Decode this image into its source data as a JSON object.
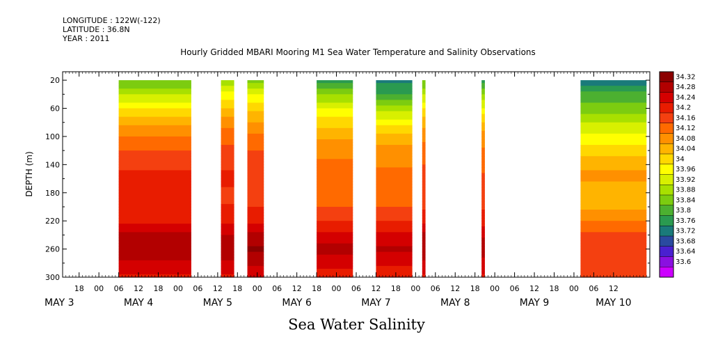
{
  "chart_data": {
    "type": "heatmap",
    "title": "Hourly Gridded MBARI Mooring M1 Sea Water Temperature and Salinity Observations",
    "subtitle": "Sea Water Salinity",
    "header_lines": [
      "LONGITUDE : 122W(-122)",
      "LATITUDE : 36.8N",
      "YEAR : 2011"
    ],
    "ylabel": "DEPTH (m)",
    "ylim": [
      300,
      8
    ],
    "y_ticks": [
      20,
      60,
      100,
      140,
      180,
      220,
      260,
      300
    ],
    "x_axis_start": "2011-05-03 13:00",
    "x_axis_end": "2011-05-10 23:00",
    "x_hour_tick_labels": [
      {
        "time": "2011-05-03 18:00",
        "label": "18"
      },
      {
        "time": "2011-05-04 00:00",
        "label": "00"
      },
      {
        "time": "2011-05-04 06:00",
        "label": "06"
      },
      {
        "time": "2011-05-04 12:00",
        "label": "12"
      },
      {
        "time": "2011-05-04 18:00",
        "label": "18"
      },
      {
        "time": "2011-05-05 00:00",
        "label": "00"
      },
      {
        "time": "2011-05-05 06:00",
        "label": "06"
      },
      {
        "time": "2011-05-05 12:00",
        "label": "12"
      },
      {
        "time": "2011-05-05 18:00",
        "label": "18"
      },
      {
        "time": "2011-05-06 00:00",
        "label": "00"
      },
      {
        "time": "2011-05-06 06:00",
        "label": "06"
      },
      {
        "time": "2011-05-06 12:00",
        "label": "12"
      },
      {
        "time": "2011-05-06 18:00",
        "label": "18"
      },
      {
        "time": "2011-05-07 00:00",
        "label": "00"
      },
      {
        "time": "2011-05-07 06:00",
        "label": "06"
      },
      {
        "time": "2011-05-07 12:00",
        "label": "12"
      },
      {
        "time": "2011-05-07 18:00",
        "label": "18"
      },
      {
        "time": "2011-05-08 00:00",
        "label": "00"
      },
      {
        "time": "2011-05-08 06:00",
        "label": "06"
      },
      {
        "time": "2011-05-08 12:00",
        "label": "12"
      },
      {
        "time": "2011-05-08 18:00",
        "label": "18"
      },
      {
        "time": "2011-05-09 00:00",
        "label": "00"
      },
      {
        "time": "2011-05-09 06:00",
        "label": "06"
      },
      {
        "time": "2011-05-09 12:00",
        "label": "12"
      },
      {
        "time": "2011-05-09 18:00",
        "label": "18"
      },
      {
        "time": "2011-05-10 00:00",
        "label": "00"
      },
      {
        "time": "2011-05-10 06:00",
        "label": "06"
      },
      {
        "time": "2011-05-10 12:00",
        "label": "12"
      }
    ],
    "x_day_labels": [
      {
        "time": "2011-05-03 12:00",
        "label": "MAY  3"
      },
      {
        "time": "2011-05-04 12:00",
        "label": "MAY  4"
      },
      {
        "time": "2011-05-05 12:00",
        "label": "MAY  5"
      },
      {
        "time": "2011-05-06 12:00",
        "label": "MAY  6"
      },
      {
        "time": "2011-05-07 12:00",
        "label": "MAY  7"
      },
      {
        "time": "2011-05-08 12:00",
        "label": "MAY  8"
      },
      {
        "time": "2011-05-09 12:00",
        "label": "MAY  9"
      },
      {
        "time": "2011-05-10 12:00",
        "label": "MAY 10"
      }
    ],
    "colorbar": {
      "labels": [
        "34.32",
        "34.28",
        "34.24",
        "34.2",
        "34.16",
        "34.12",
        "34.08",
        "34.04",
        "34",
        "33.96",
        "33.92",
        "33.88",
        "33.84",
        "33.8",
        "33.76",
        "33.72",
        "33.68",
        "33.64",
        "33.6"
      ],
      "colors": [
        "#8b0000",
        "#b20000",
        "#d40000",
        "#e81c00",
        "#f44010",
        "#ff6a00",
        "#ff9000",
        "#ffb400",
        "#ffd800",
        "#ffff00",
        "#d8f000",
        "#a8e000",
        "#7ccc10",
        "#4cb030",
        "#2a9a50",
        "#1a7a7a",
        "#2a4aa0",
        "#4a20d0",
        "#8a10e0",
        "#cc00ff"
      ]
    },
    "segments": [
      {
        "start": "2011-05-04 06:00",
        "end": "2011-05-05 04:00",
        "profile": [
          [
            20,
            33.82
          ],
          [
            40,
            33.9
          ],
          [
            60,
            33.98
          ],
          [
            80,
            34.05
          ],
          [
            100,
            34.09
          ],
          [
            120,
            34.13
          ],
          [
            140,
            34.16
          ],
          [
            160,
            34.18
          ],
          [
            180,
            34.17
          ],
          [
            200,
            34.18
          ],
          [
            220,
            34.2
          ],
          [
            240,
            34.25
          ],
          [
            260,
            34.28
          ],
          [
            280,
            34.24
          ],
          [
            300,
            34.2
          ]
        ]
      },
      {
        "start": "2011-05-05 13:00",
        "end": "2011-05-05 17:00",
        "profile": [
          [
            20,
            33.86
          ],
          [
            40,
            33.96
          ],
          [
            60,
            34.02
          ],
          [
            80,
            34.08
          ],
          [
            100,
            34.12
          ],
          [
            120,
            34.14
          ],
          [
            140,
            34.16
          ],
          [
            160,
            34.18
          ],
          [
            180,
            34.16
          ],
          [
            200,
            34.17
          ],
          [
            220,
            34.19
          ],
          [
            240,
            34.25
          ],
          [
            260,
            34.28
          ],
          [
            280,
            34.24
          ],
          [
            300,
            34.2
          ]
        ]
      },
      {
        "start": "2011-05-05 21:00",
        "end": "2011-05-06 02:00",
        "profile": [
          [
            20,
            33.84
          ],
          [
            40,
            33.94
          ],
          [
            60,
            34.0
          ],
          [
            80,
            34.06
          ],
          [
            100,
            34.1
          ],
          [
            120,
            34.13
          ],
          [
            140,
            34.15
          ],
          [
            160,
            34.16
          ],
          [
            180,
            34.15
          ],
          [
            200,
            34.17
          ],
          [
            220,
            34.2
          ],
          [
            240,
            34.26
          ],
          [
            260,
            34.29
          ],
          [
            280,
            34.25
          ],
          [
            300,
            34.21
          ]
        ]
      },
      {
        "start": "2011-05-06 18:00",
        "end": "2011-05-07 05:00",
        "profile": [
          [
            20,
            33.77
          ],
          [
            40,
            33.86
          ],
          [
            60,
            33.94
          ],
          [
            80,
            34.0
          ],
          [
            100,
            34.05
          ],
          [
            120,
            34.08
          ],
          [
            140,
            34.1
          ],
          [
            160,
            34.12
          ],
          [
            180,
            34.11
          ],
          [
            200,
            34.13
          ],
          [
            220,
            34.17
          ],
          [
            240,
            34.22
          ],
          [
            260,
            34.26
          ],
          [
            280,
            34.22
          ],
          [
            300,
            34.19
          ]
        ]
      },
      {
        "start": "2011-05-07 12:00",
        "end": "2011-05-07 23:00",
        "profile": [
          [
            20,
            33.74
          ],
          [
            40,
            33.79
          ],
          [
            60,
            33.88
          ],
          [
            80,
            33.96
          ],
          [
            100,
            34.03
          ],
          [
            120,
            34.07
          ],
          [
            140,
            34.09
          ],
          [
            160,
            34.1
          ],
          [
            180,
            34.1
          ],
          [
            200,
            34.13
          ],
          [
            220,
            34.17
          ],
          [
            240,
            34.22
          ],
          [
            260,
            34.25
          ],
          [
            280,
            34.21
          ],
          [
            300,
            34.18
          ]
        ]
      },
      {
        "start": "2011-05-08 02:00",
        "end": "2011-05-08 03:00",
        "profile": [
          [
            20,
            33.82
          ],
          [
            40,
            33.9
          ],
          [
            60,
            33.98
          ],
          [
            80,
            34.04
          ],
          [
            100,
            34.08
          ],
          [
            120,
            34.11
          ],
          [
            140,
            34.13
          ],
          [
            160,
            34.14
          ],
          [
            180,
            34.14
          ],
          [
            200,
            34.16
          ],
          [
            220,
            34.2
          ],
          [
            240,
            34.25
          ],
          [
            260,
            34.28
          ],
          [
            280,
            34.24
          ],
          [
            300,
            34.2
          ]
        ]
      },
      {
        "start": "2011-05-08 20:00",
        "end": "2011-05-08 21:00",
        "profile": [
          [
            20,
            33.78
          ],
          [
            40,
            33.86
          ],
          [
            60,
            33.95
          ],
          [
            80,
            34.02
          ],
          [
            100,
            34.07
          ],
          [
            120,
            34.1
          ],
          [
            140,
            34.12
          ],
          [
            160,
            34.14
          ],
          [
            180,
            34.14
          ],
          [
            200,
            34.16
          ],
          [
            220,
            34.19
          ],
          [
            240,
            34.24
          ],
          [
            260,
            34.27
          ],
          [
            280,
            34.23
          ],
          [
            300,
            34.2
          ]
        ]
      },
      {
        "start": "2011-05-10 02:00",
        "end": "2011-05-10 22:00",
        "profile": [
          [
            20,
            33.73
          ],
          [
            40,
            33.8
          ],
          [
            60,
            33.84
          ],
          [
            80,
            33.9
          ],
          [
            100,
            33.95
          ],
          [
            120,
            34.0
          ],
          [
            140,
            34.05
          ],
          [
            160,
            34.06
          ],
          [
            180,
            34.03
          ],
          [
            200,
            34.05
          ],
          [
            220,
            34.09
          ],
          [
            240,
            34.14
          ],
          [
            260,
            34.17
          ],
          [
            280,
            34.15
          ],
          [
            300,
            34.13
          ]
        ]
      }
    ]
  }
}
